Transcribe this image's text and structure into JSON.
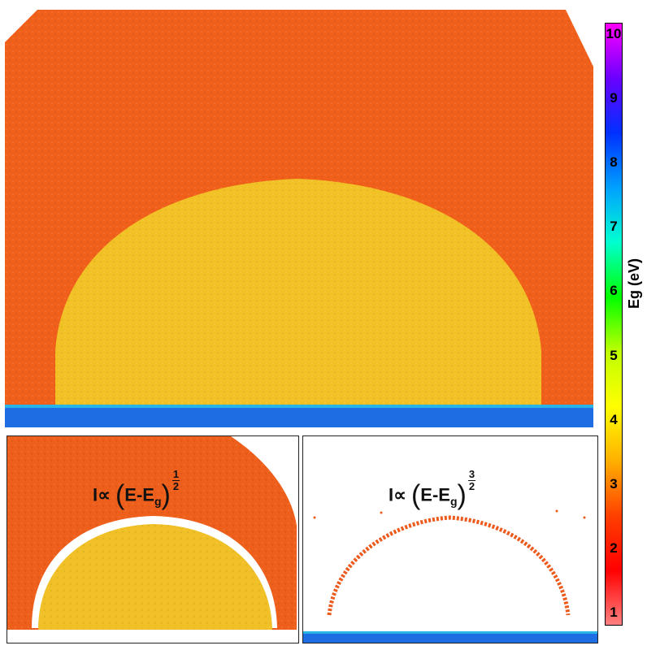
{
  "colorbar": {
    "label": "Eg (eV)",
    "ticks": [
      "10",
      "9",
      "8",
      "7",
      "6",
      "5",
      "4",
      "3",
      "2",
      "1"
    ],
    "min": 1,
    "max": 10,
    "stops": [
      "#ff00ff",
      "#6a00ff",
      "#0030ff",
      "#00a0ff",
      "#00ffd0",
      "#00ff00",
      "#bfff00",
      "#ffff00",
      "#ffb000",
      "#ff4000",
      "#ff0000",
      "#ff8080"
    ]
  },
  "panels": {
    "main": {
      "outer_color": "#f2621c",
      "inner_color": "#f2c325",
      "substrate_color": "#1e6fe0"
    },
    "half": {
      "formula": {
        "prefix": "I∝ ",
        "base": "E-E",
        "sub": "g",
        "num": "1",
        "den": "2"
      }
    },
    "threehalf": {
      "formula": {
        "prefix": "I∝ ",
        "base": "E-E",
        "sub": "g",
        "num": "3",
        "den": "2"
      }
    }
  }
}
